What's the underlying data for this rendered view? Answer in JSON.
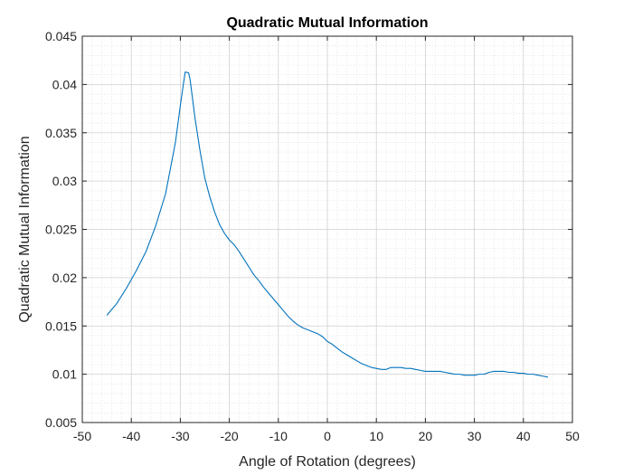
{
  "chart_data": {
    "type": "line",
    "title": "Quadratic Mutual Information",
    "xlabel": "Angle of Rotation (degrees)",
    "ylabel": "Quadratic Mutual Information",
    "xlim": [
      -50,
      50
    ],
    "ylim": [
      0.005,
      0.045
    ],
    "xticks": [
      -50,
      -40,
      -30,
      -20,
      -10,
      0,
      10,
      20,
      30,
      40,
      50
    ],
    "xtick_labels": [
      "-50",
      "-40",
      "-30",
      "-20",
      "-10",
      "0",
      "10",
      "20",
      "30",
      "40",
      "50"
    ],
    "yticks": [
      0.005,
      0.01,
      0.015,
      0.02,
      0.025,
      0.03,
      0.035,
      0.04,
      0.045
    ],
    "ytick_labels": [
      "0.005",
      "0.01",
      "0.015",
      "0.02",
      "0.025",
      "0.03",
      "0.035",
      "0.04",
      "0.045"
    ],
    "grid": true,
    "minor_grid": true,
    "line_color": "#0072bd",
    "series": [
      {
        "x": [
          -45,
          -43,
          -41,
          -39,
          -37,
          -35,
          -33,
          -31,
          -30,
          -29.5,
          -29,
          -28.3,
          -28,
          -27.5,
          -27,
          -26,
          -25,
          -24,
          -23,
          -22,
          -21,
          -20,
          -19,
          -18,
          -17,
          -16,
          -15,
          -14,
          -13,
          -12,
          -11,
          -10,
          -9,
          -8,
          -7,
          -6,
          -5,
          -4,
          -3,
          -2,
          -1,
          0,
          1,
          2,
          3,
          4,
          5,
          6,
          7,
          8,
          9,
          10,
          11,
          12,
          13,
          14,
          15,
          16,
          17,
          18,
          19,
          20,
          21,
          22,
          23,
          24,
          25,
          26,
          27,
          28,
          29,
          30,
          31,
          32,
          33,
          34,
          35,
          36,
          37,
          38,
          39,
          40,
          41,
          42,
          43,
          44,
          45
        ],
        "y": [
          0.0161,
          0.0173,
          0.0189,
          0.0207,
          0.0227,
          0.0254,
          0.0287,
          0.034,
          0.0378,
          0.0396,
          0.0413,
          0.0412,
          0.0405,
          0.0385,
          0.0365,
          0.0332,
          0.0303,
          0.0284,
          0.0268,
          0.0255,
          0.0246,
          0.0239,
          0.0234,
          0.0227,
          0.0219,
          0.0211,
          0.0203,
          0.0197,
          0.019,
          0.0184,
          0.0178,
          0.0172,
          0.0166,
          0.016,
          0.0155,
          0.0151,
          0.0148,
          0.0146,
          0.0144,
          0.0142,
          0.0139,
          0.0134,
          0.0131,
          0.0127,
          0.0123,
          0.012,
          0.0117,
          0.0114,
          0.0111,
          0.0109,
          0.0107,
          0.0106,
          0.0105,
          0.0105,
          0.0107,
          0.0107,
          0.0107,
          0.0106,
          0.0106,
          0.0105,
          0.0104,
          0.0103,
          0.0103,
          0.0103,
          0.0103,
          0.0102,
          0.0101,
          0.01,
          0.01,
          0.0099,
          0.0099,
          0.0099,
          0.01,
          0.01,
          0.0102,
          0.0103,
          0.0103,
          0.0103,
          0.0102,
          0.0102,
          0.0101,
          0.0101,
          0.01,
          0.01,
          0.0099,
          0.0098,
          0.0097
        ]
      }
    ]
  }
}
